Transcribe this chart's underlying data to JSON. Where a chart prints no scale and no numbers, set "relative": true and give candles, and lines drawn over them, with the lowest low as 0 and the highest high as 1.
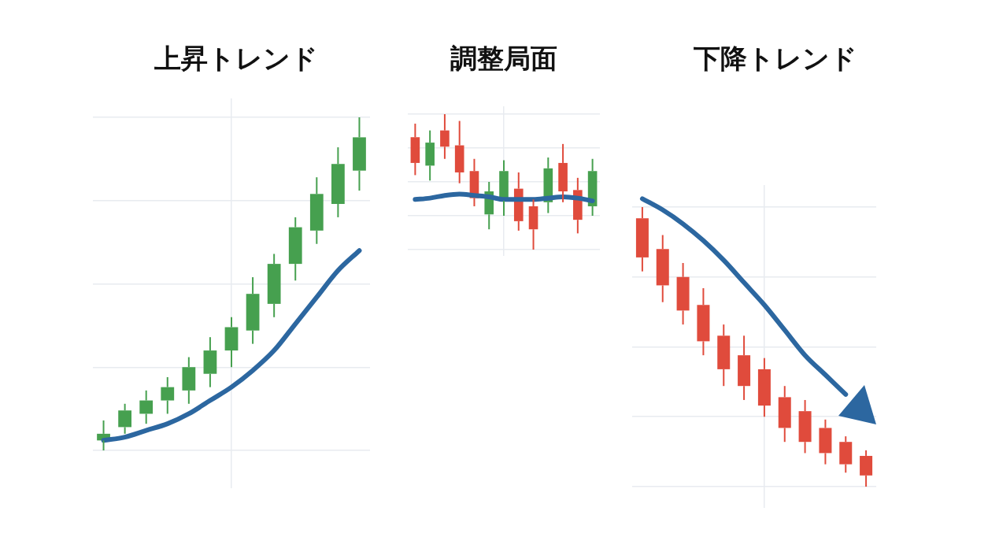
{
  "chart_data": [
    {
      "type": "candlestick",
      "title": "上昇トレンド",
      "relative": true,
      "grid": true,
      "legend": false,
      "categories": [
        null,
        null,
        null,
        null,
        null,
        null,
        null,
        null,
        null,
        null,
        null,
        null,
        null
      ],
      "ohlc": [
        [
          0.03,
          0.09,
          0,
          0.05
        ],
        [
          0.07,
          0.14,
          0.05,
          0.12
        ],
        [
          0.11,
          0.18,
          0.08,
          0.15
        ],
        [
          0.15,
          0.22,
          0.11,
          0.19
        ],
        [
          0.18,
          0.28,
          0.14,
          0.25
        ],
        [
          0.23,
          0.34,
          0.19,
          0.3
        ],
        [
          0.3,
          0.4,
          0.25,
          0.37
        ],
        [
          0.36,
          0.52,
          0.32,
          0.47
        ],
        [
          0.44,
          0.59,
          0.4,
          0.56
        ],
        [
          0.56,
          0.7,
          0.51,
          0.67
        ],
        [
          0.66,
          0.82,
          0.62,
          0.77
        ],
        [
          0.74,
          0.91,
          0.7,
          0.86
        ],
        [
          0.84,
          1,
          0.78,
          0.94
        ]
      ],
      "colors": [
        "#46a04f",
        "#46a04f",
        "#46a04f",
        "#46a04f",
        "#46a04f",
        "#46a04f",
        "#46a04f",
        "#46a04f",
        "#46a04f",
        "#46a04f",
        "#46a04f",
        "#46a04f",
        "#46a04f"
      ],
      "series": [
        {
          "type": "line",
          "color": "#2c67a0",
          "values": [
            0.03,
            0.04,
            0.06,
            0.08,
            0.11,
            0.15,
            0.19,
            0.24,
            0.3,
            0.38,
            0.46,
            0.54,
            0.6
          ]
        }
      ]
    },
    {
      "type": "candlestick",
      "title": "調整局面",
      "relative": true,
      "grid": true,
      "legend": false,
      "categories": [
        null,
        null,
        null,
        null,
        null,
        null,
        null,
        null,
        null,
        null,
        null,
        null,
        null
      ],
      "ohlc": [
        [
          0.83,
          0.93,
          0.55,
          0.64
        ],
        [
          0.62,
          0.88,
          0.51,
          0.79
        ],
        [
          0.88,
          1,
          0.67,
          0.76
        ],
        [
          0.77,
          0.95,
          0.49,
          0.57
        ],
        [
          0.58,
          0.67,
          0.32,
          0.38
        ],
        [
          0.26,
          0.5,
          0.15,
          0.43
        ],
        [
          0.36,
          0.66,
          0.25,
          0.58
        ],
        [
          0.45,
          0.57,
          0.14,
          0.21
        ],
        [
          0.32,
          0.37,
          0,
          0.15
        ],
        [
          0.35,
          0.68,
          0.27,
          0.6
        ],
        [
          0.64,
          0.78,
          0.35,
          0.43
        ],
        [
          0.44,
          0.53,
          0.12,
          0.22
        ],
        [
          0.32,
          0.67,
          0.25,
          0.58
        ]
      ],
      "colors": [
        "#e04b3c",
        "#46a04f",
        "#e04b3c",
        "#e04b3c",
        "#e04b3c",
        "#46a04f",
        "#46a04f",
        "#e04b3c",
        "#e04b3c",
        "#46a04f",
        "#e04b3c",
        "#e04b3c",
        "#46a04f"
      ],
      "series": [
        {
          "type": "line",
          "color": "#2c67a0",
          "values": [
            0.37,
            0.38,
            0.4,
            0.41,
            0.4,
            0.39,
            0.37,
            0.37,
            0.37,
            0.38,
            0.39,
            0.38,
            0.36
          ]
        }
      ]
    },
    {
      "type": "candlestick",
      "title": "下降トレンド",
      "relative": true,
      "grid": true,
      "legend": false,
      "categories": [
        null,
        null,
        null,
        null,
        null,
        null,
        null,
        null,
        null,
        null,
        null,
        null
      ],
      "ohlc": [
        [
          0.96,
          1,
          0.77,
          0.82
        ],
        [
          0.85,
          0.9,
          0.66,
          0.72
        ],
        [
          0.75,
          0.8,
          0.58,
          0.63
        ],
        [
          0.65,
          0.71,
          0.47,
          0.52
        ],
        [
          0.54,
          0.58,
          0.36,
          0.42
        ],
        [
          0.47,
          0.54,
          0.31,
          0.36
        ],
        [
          0.42,
          0.46,
          0.25,
          0.29
        ],
        [
          0.32,
          0.36,
          0.16,
          0.21
        ],
        [
          0.27,
          0.31,
          0.12,
          0.16
        ],
        [
          0.21,
          0.24,
          0.08,
          0.12
        ],
        [
          0.16,
          0.18,
          0.05,
          0.08
        ],
        [
          0.11,
          0.13,
          0,
          0.04
        ]
      ],
      "colors": [
        "#e04b3c",
        "#e04b3c",
        "#e04b3c",
        "#e04b3c",
        "#e04b3c",
        "#e04b3c",
        "#e04b3c",
        "#e04b3c",
        "#e04b3c",
        "#e04b3c",
        "#e04b3c",
        "#e04b3c"
      ],
      "series": [
        {
          "type": "line",
          "color": "#2c67a0",
          "values": [
            1.03,
            0.99,
            0.94,
            0.88,
            0.81,
            0.73,
            0.65,
            0.56,
            0.47,
            0.4,
            0.33,
            null
          ]
        }
      ]
    }
  ]
}
